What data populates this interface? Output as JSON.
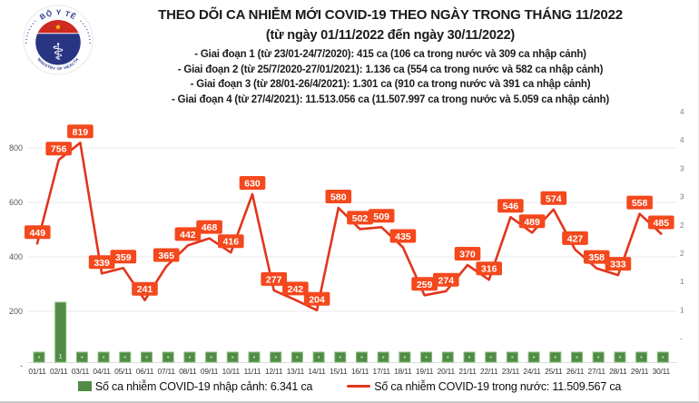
{
  "header": {
    "logo": {
      "top_text": "BỘ Y TẾ",
      "bottom_text": "MINISTRY OF HEALTH",
      "star_glyph": "★",
      "staff_glyph": "⚕"
    },
    "title": "THEO DÕI CA NHIỄM MỚI COVID-19 THEO NGÀY TRONG THÁNG 11/2022",
    "subtitle": "(từ ngày 01/11/2022 đến ngày 30/11/2022)",
    "phases": [
      "- Giai đoạn 1 (từ 23/01-24/7/2020): 415 ca (106 ca trong nước và 309 ca nhập cảnh)",
      "- Giai đoạn 2 (từ 25/7/2020-27/01/2021): 1.136 ca (554 ca trong nước và 582 ca nhập cảnh)",
      "- Giai đoạn 3 (từ 28/01-26/4/2021): 1.301 ca (910 ca trong nước và 391 ca nhập cảnh)",
      "- Giai đoạn 4 (từ 27/4/2021): 11.513.056 ca (11.507.997 ca trong nước và 5.059 ca nhập cảnh)"
    ]
  },
  "chart_data": {
    "type": "line+bar",
    "title": "THEO DÕI CA NHIỄM MỚI COVID-19 THEO NGÀY TRONG THÁNG 11/2022",
    "categories": [
      "01/11",
      "02/11",
      "03/11",
      "04/11",
      "05/11",
      "06/11",
      "07/11",
      "08/11",
      "09/11",
      "10/11",
      "11/11",
      "12/11",
      "13/11",
      "14/11",
      "15/11",
      "16/11",
      "17/11",
      "18/11",
      "19/11",
      "20/11",
      "21/11",
      "22/11",
      "23/11",
      "24/11",
      "25/11",
      "26/11",
      "27/11",
      "28/11",
      "29/11",
      "30/11"
    ],
    "series": [
      {
        "name": "Số ca nhiễm COVID-19 trong nước",
        "type": "line",
        "color": "#e2351c",
        "values": [
          449,
          756,
          819,
          339,
          359,
          241,
          365,
          442,
          468,
          416,
          630,
          277,
          242,
          204,
          580,
          502,
          509,
          435,
          259,
          274,
          370,
          316,
          546,
          489,
          574,
          427,
          358,
          333,
          558,
          485
        ]
      },
      {
        "name": "Số ca nhiễm COVID-19 nhập cảnh",
        "type": "bar",
        "color": "#518c46",
        "values_approx": [
          null,
          220,
          null,
          null,
          null,
          null,
          null,
          null,
          null,
          null,
          null,
          null,
          null,
          null,
          null,
          null,
          null,
          null,
          null,
          null,
          null,
          null,
          null,
          null,
          null,
          null,
          null,
          null,
          null,
          null
        ],
        "spike_label_visible": "1",
        "note": "per-day bar values not legible except spike on 02/11 (≈220); other days drawn as minimal bars"
      }
    ],
    "left_axis": {
      "tick_values": [
        800,
        600,
        400,
        200,
        0
      ],
      "tick_labels": [
        "800",
        "600",
        "400",
        "200",
        "-"
      ],
      "ylim": [
        0,
        900
      ]
    },
    "right_axis": {
      "tick_labels": [
        "4",
        "4",
        "3",
        "3",
        "2",
        "2",
        "1",
        "1",
        "-"
      ]
    },
    "grid": true,
    "legend_position": "bottom"
  },
  "legend": {
    "imported_label": "Số ca nhiễm COVID-19 nhập cảnh: 6.341 ca",
    "domestic_label": "Số ca nhiễm COVID-19 trong nước: 11.509.567 ca"
  },
  "colors": {
    "line": "#e2351c",
    "point_label_bg": "#f4481d",
    "point_label_text": "#ffffff",
    "bar_fill": "#518c46",
    "bar_border": "#86bb78",
    "grid": "#e8e8e8",
    "axis_text": "#555555",
    "date_text": "#333333",
    "logo_blue": "#2b3990",
    "logo_red": "#ce2a20",
    "logo_star": "#ffd200"
  }
}
